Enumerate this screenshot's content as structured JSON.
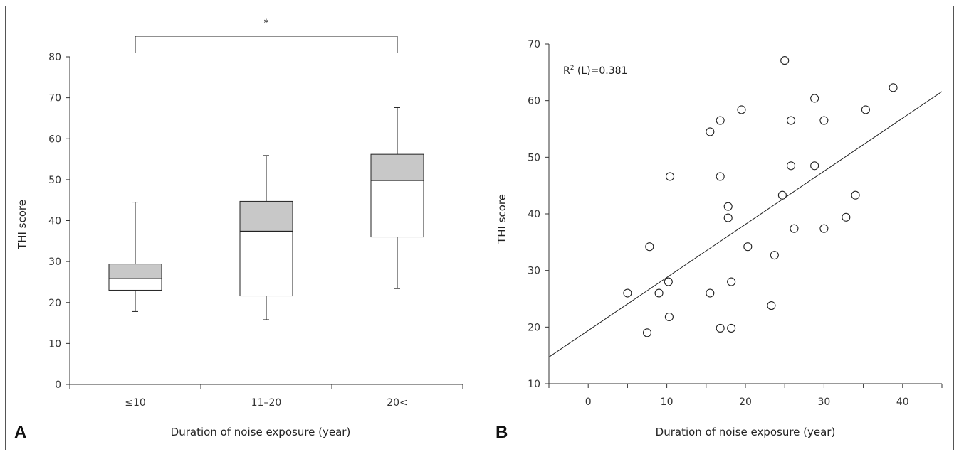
{
  "panels": {
    "A": {
      "label": "A"
    },
    "B": {
      "label": "B"
    }
  },
  "chart_data": [
    {
      "type": "box",
      "panel": "A",
      "xlabel": "Duration of noise exposure (year)",
      "ylabel": "THI score",
      "ylim": [
        0,
        80
      ],
      "yticks": [
        0,
        10,
        20,
        30,
        40,
        50,
        60,
        70,
        80
      ],
      "categories": [
        "≤10",
        "11–20",
        "20<"
      ],
      "boxes": [
        {
          "category": "≤10",
          "min": 17.8,
          "q1": 23,
          "median": 25.8,
          "q3": 29.4,
          "max": 44.5
        },
        {
          "category": "11–20",
          "min": 15.8,
          "q1": 21.6,
          "median": 37.4,
          "q3": 44.7,
          "max": 55.9
        },
        {
          "category": "20<",
          "min": 23.4,
          "q1": 36,
          "median": 49.8,
          "q3": 56.2,
          "max": 67.6
        }
      ],
      "significance": {
        "from": "≤10",
        "to": "20<",
        "symbol": "*"
      },
      "colors": {
        "upper_box": "#c8c8c8",
        "lower_box": "#ffffff",
        "line": "#222222"
      }
    },
    {
      "type": "scatter",
      "panel": "B",
      "xlabel": "Duration of noise exposure (year)",
      "ylabel": "THI score",
      "xlim": [
        -5,
        45
      ],
      "ylim": [
        10,
        70
      ],
      "xticks": [
        0,
        10,
        20,
        30,
        40
      ],
      "yticks": [
        10,
        20,
        30,
        40,
        50,
        60,
        70
      ],
      "annotation": {
        "prefix": "R",
        "sup": "2",
        "text": " (L)=0.381"
      },
      "regression": {
        "x": [
          -5,
          45
        ],
        "y": [
          14.7,
          61.6
        ]
      },
      "points": [
        {
          "x": 5,
          "y": 26
        },
        {
          "x": 7.5,
          "y": 19
        },
        {
          "x": 7.8,
          "y": 34.2
        },
        {
          "x": 9,
          "y": 26
        },
        {
          "x": 10.2,
          "y": 28
        },
        {
          "x": 10.3,
          "y": 21.8
        },
        {
          "x": 10.4,
          "y": 46.6
        },
        {
          "x": 15.5,
          "y": 54.5
        },
        {
          "x": 15.5,
          "y": 26
        },
        {
          "x": 16.8,
          "y": 56.5
        },
        {
          "x": 16.8,
          "y": 46.6
        },
        {
          "x": 16.8,
          "y": 19.8
        },
        {
          "x": 17.8,
          "y": 41.3
        },
        {
          "x": 17.8,
          "y": 39.3
        },
        {
          "x": 18.2,
          "y": 28
        },
        {
          "x": 18.2,
          "y": 19.8
        },
        {
          "x": 19.5,
          "y": 58.4
        },
        {
          "x": 20.3,
          "y": 34.2
        },
        {
          "x": 23.3,
          "y": 23.8
        },
        {
          "x": 23.7,
          "y": 32.7
        },
        {
          "x": 24.7,
          "y": 43.3
        },
        {
          "x": 25,
          "y": 67.1
        },
        {
          "x": 25.8,
          "y": 56.5
        },
        {
          "x": 25.8,
          "y": 48.5
        },
        {
          "x": 26.2,
          "y": 37.4
        },
        {
          "x": 28.8,
          "y": 60.4
        },
        {
          "x": 28.8,
          "y": 48.5
        },
        {
          "x": 30,
          "y": 56.5
        },
        {
          "x": 30,
          "y": 37.4
        },
        {
          "x": 32.8,
          "y": 39.4
        },
        {
          "x": 34,
          "y": 43.3
        },
        {
          "x": 35.3,
          "y": 58.4
        },
        {
          "x": 38.8,
          "y": 62.3
        }
      ]
    }
  ]
}
